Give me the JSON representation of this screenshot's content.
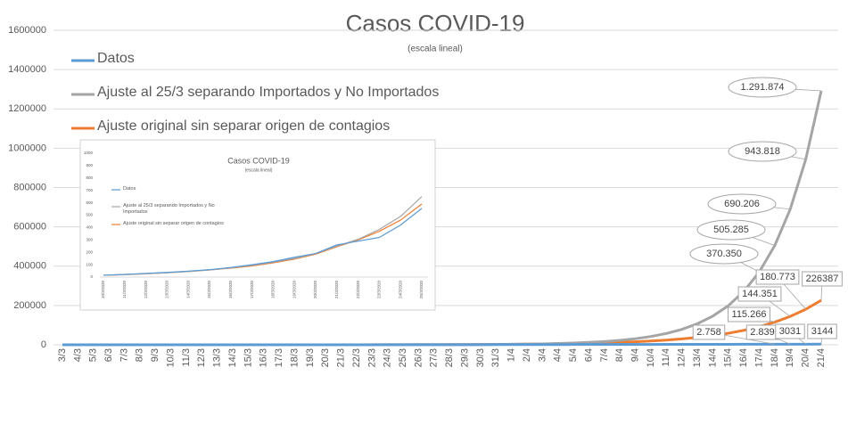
{
  "chart_data": [
    {
      "type": "line",
      "title": "Casos COVID-19",
      "subtitle": "(escala lineal)",
      "grid": true,
      "legend": "top-left",
      "categories": [
        "3/3",
        "4/3",
        "5/3",
        "6/3",
        "7/3",
        "8/3",
        "9/3",
        "10/3",
        "11/3",
        "12/3",
        "13/3",
        "14/3",
        "15/3",
        "16/3",
        "17/3",
        "18/3",
        "19/3",
        "20/3",
        "21/3",
        "22/3",
        "23/3",
        "24/3",
        "25/3",
        "26/3",
        "27/3",
        "28/3",
        "29/3",
        "30/3",
        "31/3",
        "1/4",
        "2/4",
        "3/4",
        "4/4",
        "5/4",
        "6/4",
        "7/4",
        "8/4",
        "9/4",
        "10/4",
        "11/4",
        "12/4",
        "13/4",
        "14/4",
        "15/4",
        "16/4",
        "17/4",
        "18/4",
        "19/4",
        "20/4",
        "21/4"
      ],
      "ylim": [
        0,
        1600000
      ],
      "yticks": [
        0,
        200000,
        400000,
        600000,
        800000,
        1000000,
        1200000,
        1400000,
        1600000
      ],
      "series": [
        {
          "name": "Datos",
          "color": "#5b9bd5",
          "values": [
            1,
            1,
            2,
            8,
            9,
            12,
            12,
            17,
            19,
            21,
            31,
            34,
            45,
            56,
            65,
            79,
            97,
            128,
            158,
            225,
            266,
            301,
            387,
            502,
            589,
            690,
            745,
            820,
            966,
            1054,
            1133,
            1265,
            1353,
            1451,
            1554,
            1628,
            1715,
            1795,
            1894,
            1975,
            2142,
            2208,
            2277,
            2443,
            2571,
            2669,
            2758,
            2839,
            3031,
            3144
          ],
          "value_labels": [
            null,
            null,
            null,
            null,
            null,
            null,
            null,
            null,
            null,
            null,
            null,
            null,
            null,
            null,
            null,
            null,
            null,
            null,
            null,
            null,
            null,
            null,
            null,
            null,
            null,
            null,
            null,
            null,
            null,
            null,
            null,
            null,
            null,
            null,
            null,
            null,
            null,
            null,
            null,
            null,
            null,
            null,
            null,
            null,
            null,
            null,
            "2.758",
            "2.839",
            "3031",
            "3144"
          ]
        },
        {
          "name": "Ajuste al 25/3 separando Importados y No Importados",
          "color": "#a5a5a5",
          "values": [
            null,
            null,
            null,
            null,
            null,
            null,
            null,
            null,
            null,
            null,
            null,
            null,
            null,
            null,
            null,
            null,
            null,
            null,
            null,
            null,
            158,
            215,
            294,
            401,
            546,
            745,
            1017,
            1387,
            1891,
            2580,
            3519,
            4800,
            6547,
            8930,
            12180,
            16614,
            22661,
            30910,
            42161,
            57508,
            78441,
            106993,
            145938,
            199060,
            271518,
            370350,
            505285,
            690206,
            943818,
            1291874
          ],
          "value_labels": [
            null,
            null,
            null,
            null,
            null,
            null,
            null,
            null,
            null,
            null,
            null,
            null,
            null,
            null,
            null,
            null,
            null,
            null,
            null,
            null,
            null,
            null,
            null,
            null,
            null,
            null,
            null,
            null,
            null,
            null,
            null,
            null,
            null,
            null,
            null,
            null,
            null,
            null,
            null,
            null,
            null,
            null,
            null,
            null,
            null,
            "370.350",
            "505.285",
            "690.206",
            "943.818",
            "1.291.874"
          ]
        },
        {
          "name": "Ajuste original sin separar origen de contagios",
          "color": "#ed7d31",
          "values": [
            4,
            5,
            6,
            7,
            9,
            11,
            14,
            18,
            22,
            28,
            35,
            44,
            55,
            69,
            86,
            108,
            135,
            169,
            212,
            265,
            332,
            416,
            521,
            652,
            817,
            1023,
            1281,
            1604,
            2009,
            2515,
            3150,
            3945,
            4940,
            6186,
            7747,
            9702,
            12150,
            15216,
            19055,
            23863,
            29884,
            37423,
            46866,
            58690,
            73498,
            92043,
            115266,
            144351,
            180773,
            226387
          ],
          "value_labels": [
            null,
            null,
            null,
            null,
            null,
            null,
            null,
            null,
            null,
            null,
            null,
            null,
            null,
            null,
            null,
            null,
            null,
            null,
            null,
            null,
            null,
            null,
            null,
            null,
            null,
            null,
            null,
            null,
            null,
            null,
            null,
            null,
            null,
            null,
            null,
            null,
            null,
            null,
            null,
            null,
            null,
            null,
            null,
            null,
            null,
            null,
            "115.266",
            "144.351",
            "180.773",
            "226387"
          ]
        }
      ]
    },
    {
      "type": "line",
      "title": "Casos COVID-19",
      "subtitle": "(escala lineal)",
      "grid": false,
      "legend": "left",
      "categories": [
        "10/3/2020",
        "11/3/2020",
        "12/3/2020",
        "13/3/2020",
        "14/3/2020",
        "15/3/2020",
        "16/3/2020",
        "17/3/2020",
        "18/3/2020",
        "19/3/2020",
        "20/3/2020",
        "21/3/2020",
        "22/3/2020",
        "23/3/2020",
        "24/3/2020",
        "25/3/2020"
      ],
      "ylim": [
        0,
        1000
      ],
      "yticks": [
        0,
        100,
        200,
        300,
        400,
        500,
        600,
        700,
        800,
        900,
        1000
      ],
      "series": [
        {
          "name": "Datos",
          "color": "#5b9bd5",
          "values": [
            15,
            22,
            30,
            38,
            48,
            60,
            78,
            100,
            125,
            160,
            190,
            260,
            290,
            320,
            420,
            555
          ]
        },
        {
          "name": "Ajuste al 25/3 separando Importados y No Importados",
          "color": "#a5a5a5",
          "values": [
            15,
            20,
            27,
            35,
            45,
            57,
            74,
            95,
            120,
            150,
            190,
            250,
            305,
            385,
            490,
            650
          ]
        },
        {
          "name": "Ajuste original sin separar origen de contagios",
          "color": "#ed7d31",
          "values": [
            15,
            20,
            27,
            35,
            45,
            57,
            72,
            90,
            115,
            145,
            185,
            245,
            300,
            370,
            460,
            590
          ]
        }
      ]
    }
  ]
}
